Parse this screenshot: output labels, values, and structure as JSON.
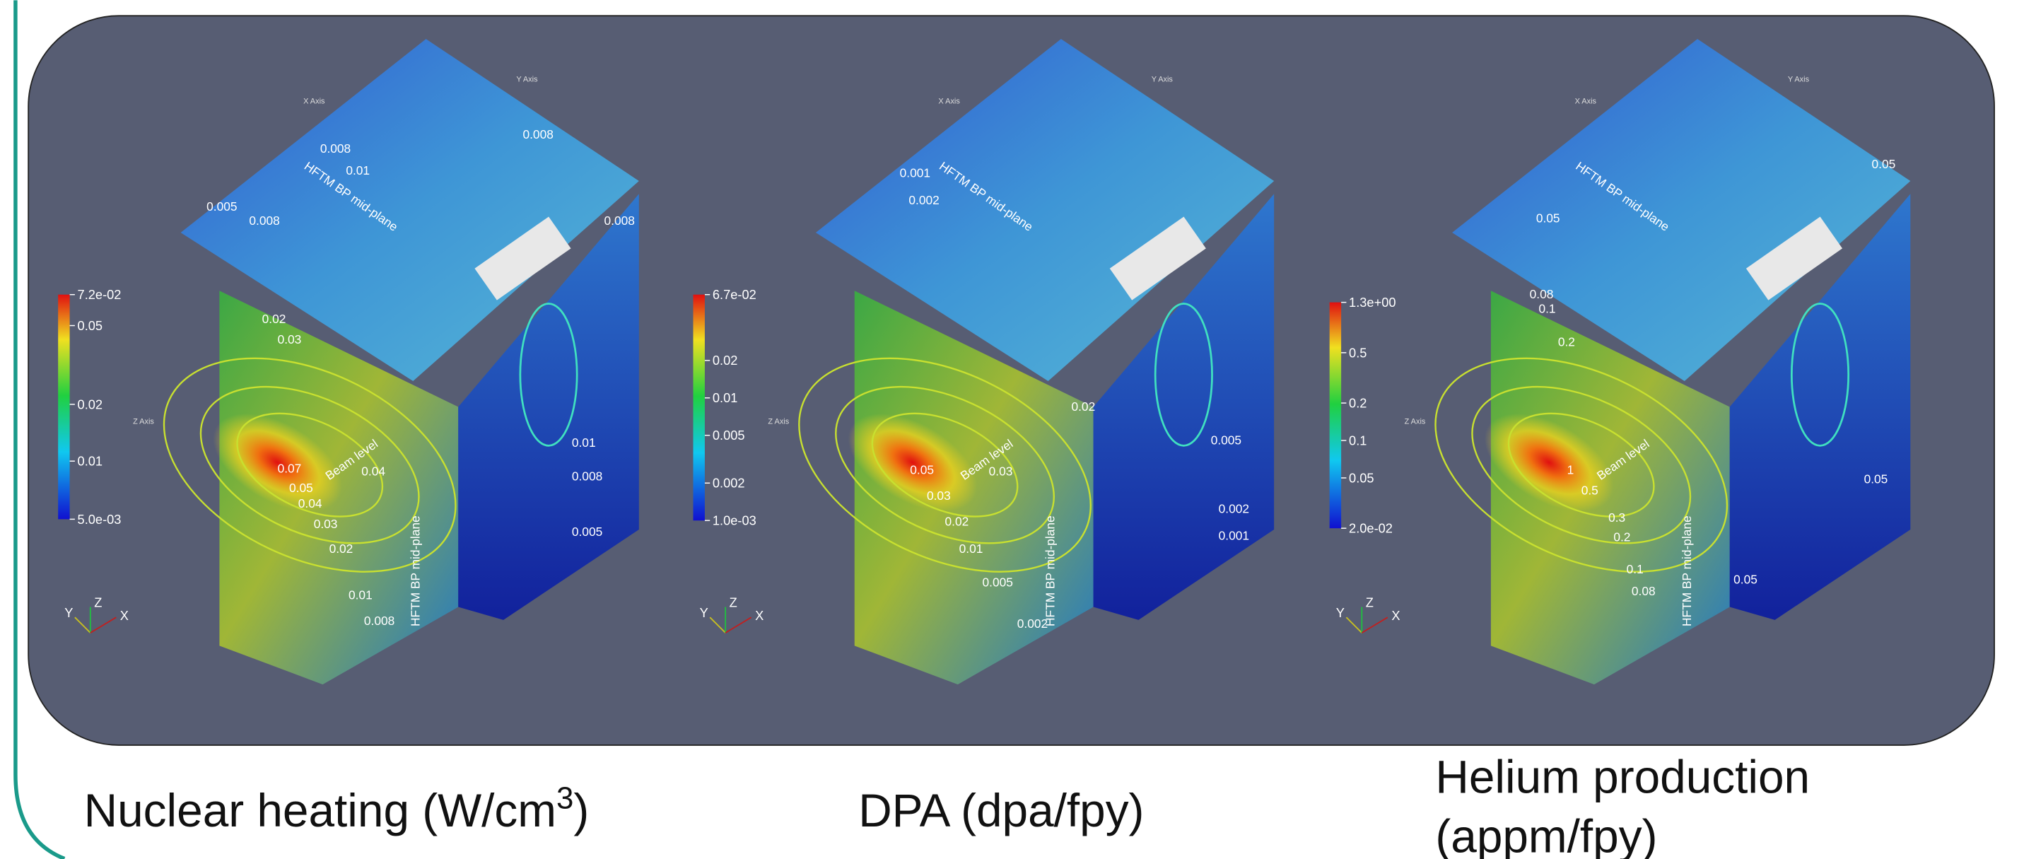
{
  "panels": [
    {
      "caption": [
        "Nuclear heating (W/cm",
        "3",
        ")"
      ],
      "colorbar": [
        "7.2e-02",
        "0.05",
        "0.02",
        "0.01",
        "5.0e-03"
      ],
      "contours": [
        "0.008",
        "0.01",
        "0.005",
        "0.008",
        "0.008",
        "0.008",
        "0.02",
        "0.03",
        "0.07",
        "0.05",
        "0.04",
        "0.04",
        "0.03",
        "0.02",
        "0.01",
        "0.008",
        "0.01",
        "0.008",
        "0.005"
      ],
      "annotations": [
        "HFTM BP mid-plane",
        "Beam level",
        "HFTM BP mid-plane"
      ],
      "axis_labels": [
        "X Axis",
        "Y Axis",
        "Z Axis"
      ],
      "triad": [
        "Y",
        "Z",
        "X"
      ]
    },
    {
      "caption": [
        "DPA (dpa/fpy)"
      ],
      "colorbar": [
        "6.7e-02",
        "0.02",
        "0.01",
        "0.005",
        "0.002",
        "1.0e-03"
      ],
      "contours": [
        "0.001",
        "0.002",
        "0.05",
        "0.03",
        "0.03",
        "0.02",
        "0.01",
        "0.005",
        "0.002",
        "0.02",
        "0.005",
        "0.002",
        "0.001"
      ],
      "annotations": [
        "HFTM BP mid-plane",
        "Beam level",
        "HFTM BP mid-plane"
      ],
      "axis_labels": [
        "X Axis",
        "Y Axis",
        "Z Axis"
      ],
      "triad": [
        "Y",
        "Z",
        "X"
      ]
    },
    {
      "caption": [
        "Helium production",
        "(appm/fpy)"
      ],
      "colorbar": [
        "1.3e+00",
        "0.5",
        "0.2",
        "0.1",
        "0.05",
        "2.0e-02"
      ],
      "contours": [
        "0.05",
        "0.05",
        "0.08",
        "0.1",
        "0.2",
        "1",
        "0.5",
        "0.3",
        "0.2",
        "0.1",
        "0.08",
        "0.05",
        "0.05"
      ],
      "annotations": [
        "HFTM BP mid-plane",
        "Beam level",
        "HFTM BP mid-plane"
      ],
      "axis_labels": [
        "X Axis",
        "Y Axis",
        "Z Axis"
      ],
      "triad": [
        "Y",
        "Z",
        "X"
      ]
    }
  ]
}
